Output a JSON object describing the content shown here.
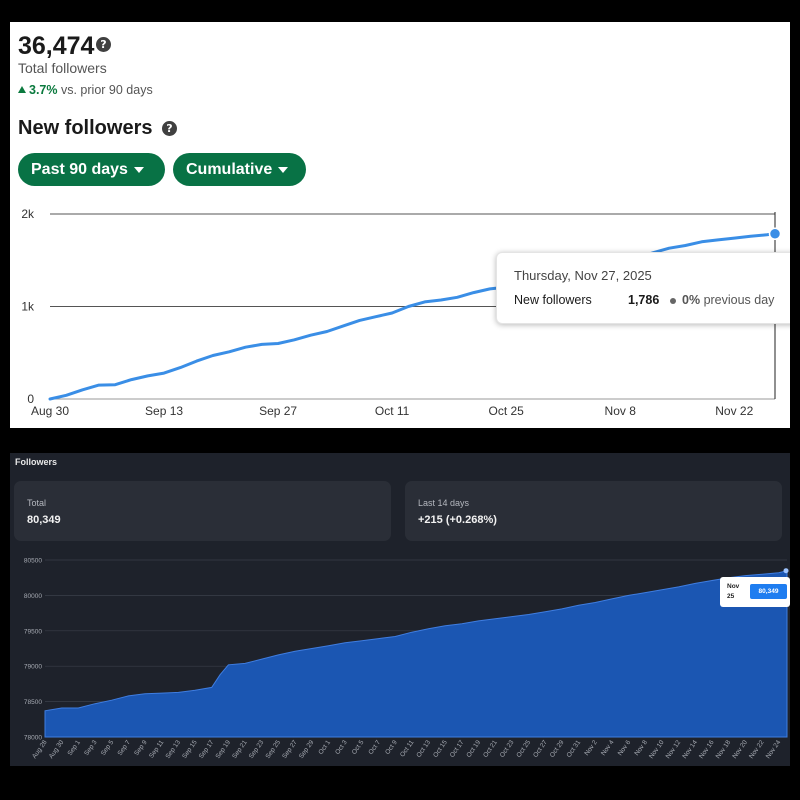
{
  "top_panel": {
    "total_value": "36,474",
    "total_label": "Total followers",
    "change_pct": "3.7%",
    "change_text": "vs. prior 90 days",
    "section_title": "New followers",
    "period_filter": "Past 90 days",
    "mode_filter": "Cumulative",
    "tooltip": {
      "date": "Thursday, Nov 27, 2025",
      "label": "New followers",
      "value": "1,786",
      "change_pct": "0%",
      "change_text": "previous day"
    },
    "colors": {
      "accent": "#087245",
      "line": "#3a8ee6",
      "up": "#0b7a3e"
    }
  },
  "bottom_panel": {
    "title": "Followers",
    "total_label": "Total",
    "total_value": "80,349",
    "recent_label": "Last 14 days",
    "recent_value": "+215 (+0.268%)",
    "tooltip": {
      "date": "Nov 25",
      "value": "80,349"
    },
    "colors": {
      "fill": "#1b56b2",
      "background": "#1e222b",
      "card": "#2a2e37",
      "badge": "#1e7df0"
    }
  },
  "chart_data": [
    {
      "type": "line",
      "title": "New followers",
      "x_tick_labels": [
        "Aug 30",
        "Sep 13",
        "Sep 27",
        "Oct 11",
        "Oct 25",
        "Nov 8",
        "Nov 22"
      ],
      "y_tick_labels": [
        "0",
        "1k",
        "2k"
      ],
      "ylim": [
        0,
        2000
      ],
      "grid": "horizontal",
      "series": [
        {
          "x": [
            "Aug 30",
            "Sep 1",
            "Sep 3",
            "Sep 5",
            "Sep 7",
            "Sep 9",
            "Sep 11",
            "Sep 13",
            "Sep 15",
            "Sep 17",
            "Sep 19",
            "Sep 21",
            "Sep 23",
            "Sep 25",
            "Sep 27",
            "Sep 29",
            "Oct 1",
            "Oct 3",
            "Oct 5",
            "Oct 7",
            "Oct 9",
            "Oct 11",
            "Oct 13",
            "Oct 15",
            "Oct 17",
            "Oct 19",
            "Oct 21",
            "Oct 23",
            "Oct 25",
            "Oct 27",
            "Oct 29",
            "Oct 31",
            "Nov 2",
            "Nov 4",
            "Nov 6",
            "Nov 8",
            "Nov 10",
            "Nov 12",
            "Nov 14",
            "Nov 16",
            "Nov 18",
            "Nov 20",
            "Nov 22",
            "Nov 24",
            "Nov 26",
            "Nov 27"
          ],
          "values": [
            0,
            40,
            100,
            150,
            155,
            210,
            250,
            280,
            340,
            410,
            470,
            510,
            560,
            590,
            600,
            640,
            690,
            730,
            790,
            850,
            890,
            930,
            1000,
            1050,
            1070,
            1100,
            1150,
            1190,
            1210,
            1240,
            1290,
            1320,
            1350,
            1390,
            1420,
            1460,
            1520,
            1580,
            1630,
            1660,
            1700,
            1720,
            1740,
            1760,
            1775,
            1786
          ]
        }
      ]
    },
    {
      "type": "area",
      "title": "Followers",
      "x_tick_labels": [
        "Aug 28",
        "Aug 30",
        "Sep 1",
        "Sep 3",
        "Sep 5",
        "Sep 7",
        "Sep 9",
        "Sep 11",
        "Sep 13",
        "Sep 15",
        "Sep 17",
        "Sep 19",
        "Sep 21",
        "Sep 23",
        "Sep 25",
        "Sep 27",
        "Sep 29",
        "Oct 1",
        "Oct 3",
        "Oct 5",
        "Oct 7",
        "Oct 9",
        "Oct 11",
        "Oct 13",
        "Oct 15",
        "Oct 17",
        "Oct 19",
        "Oct 21",
        "Oct 23",
        "Oct 25",
        "Oct 27",
        "Oct 29",
        "Oct 31",
        "Nov 2",
        "Nov 4",
        "Nov 6",
        "Nov 8",
        "Nov 10",
        "Nov 12",
        "Nov 14",
        "Nov 16",
        "Nov 18",
        "Nov 20",
        "Nov 22",
        "Nov 24"
      ],
      "y_tick_labels": [
        "78000",
        "78500",
        "79000",
        "79500",
        "80000",
        "80500"
      ],
      "ylim": [
        78000,
        80500
      ],
      "series": [
        {
          "x": [
            "Aug 28",
            "Aug 30",
            "Sep 1",
            "Sep 3",
            "Sep 5",
            "Sep 7",
            "Sep 9",
            "Sep 11",
            "Sep 13",
            "Sep 15",
            "Sep 17",
            "Sep 18",
            "Sep 19",
            "Sep 21",
            "Sep 23",
            "Sep 25",
            "Sep 27",
            "Sep 29",
            "Oct 1",
            "Oct 3",
            "Oct 5",
            "Oct 7",
            "Oct 9",
            "Oct 11",
            "Oct 13",
            "Oct 15",
            "Oct 17",
            "Oct 19",
            "Oct 21",
            "Oct 23",
            "Oct 25",
            "Oct 27",
            "Oct 29",
            "Oct 31",
            "Nov 2",
            "Nov 4",
            "Nov 6",
            "Nov 8",
            "Nov 10",
            "Nov 12",
            "Nov 14",
            "Nov 16",
            "Nov 18",
            "Nov 20",
            "Nov 22",
            "Nov 24",
            "Nov 25"
          ],
          "values": [
            78370,
            78410,
            78410,
            78470,
            78520,
            78580,
            78610,
            78620,
            78630,
            78660,
            78700,
            78880,
            79020,
            79040,
            79100,
            79160,
            79210,
            79250,
            79290,
            79330,
            79360,
            79390,
            79420,
            79480,
            79530,
            79570,
            79600,
            79640,
            79670,
            79700,
            79730,
            79770,
            79810,
            79860,
            79900,
            79950,
            80000,
            80040,
            80080,
            80120,
            80170,
            80210,
            80250,
            80280,
            80300,
            80320,
            80349
          ]
        }
      ]
    }
  ]
}
